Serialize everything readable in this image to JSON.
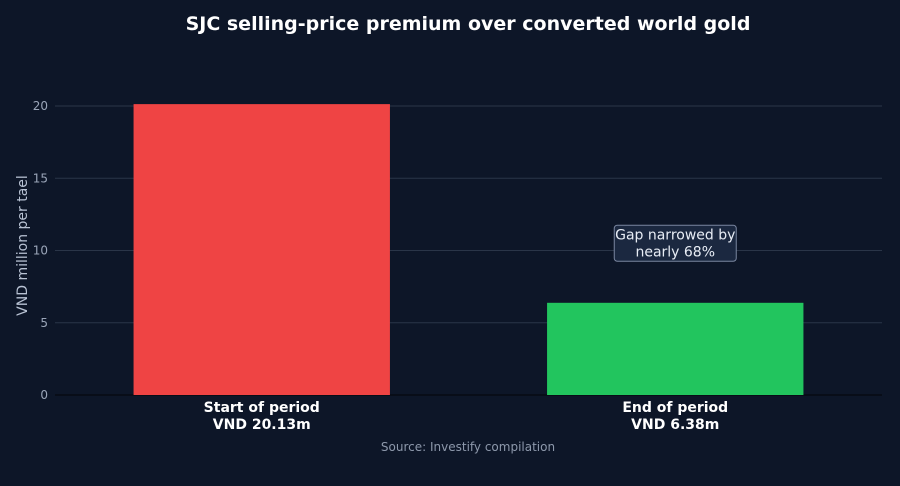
{
  "chart_data": {
    "type": "bar",
    "title": "SJC selling-price premium over converted world gold",
    "ylabel": "VND million per tael",
    "xlabel": "",
    "ylim": [
      0,
      20
    ],
    "yticks": [
      0,
      5,
      10,
      15,
      20
    ],
    "grid": true,
    "categories": [
      {
        "line1": "Start of period",
        "line2": "VND 20.13m"
      },
      {
        "line1": "End of period",
        "line2": "VND 6.38m"
      }
    ],
    "values": [
      20.13,
      6.38
    ],
    "colors": [
      "#ef4444",
      "#22c55e"
    ],
    "annotation": {
      "lines": [
        "Gap narrowed by",
        "nearly 68%"
      ],
      "x_category": 1,
      "y_value": 10.5
    },
    "source": "Source: Investify compilation"
  }
}
